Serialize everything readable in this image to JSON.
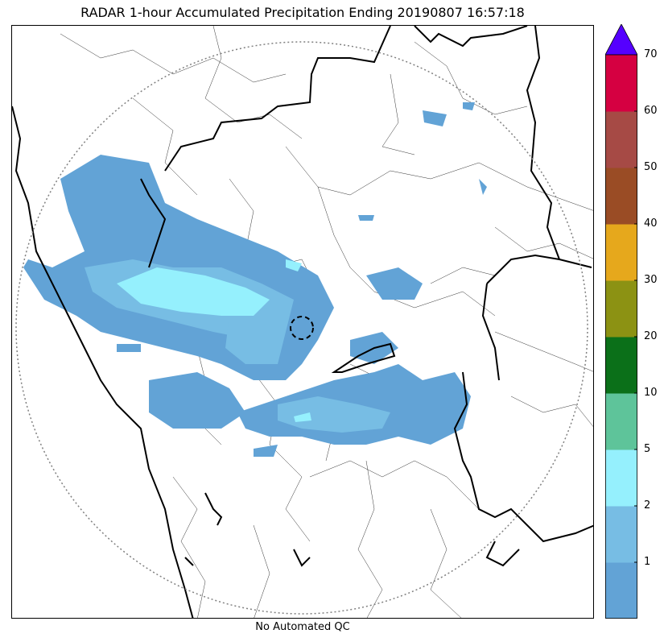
{
  "map": {
    "title": "RADAR 1-hour Accumulated Precipitation Ending 20190807 16:57:18",
    "footer": "No Automated QC"
  },
  "colorbar": {
    "ticks": [
      "1",
      "2",
      "5",
      "10",
      "20",
      "30",
      "40",
      "50",
      "60",
      "70"
    ],
    "bins": [
      {
        "color": "#62a3d6"
      },
      {
        "color": "#77bde4"
      },
      {
        "color": "#95f0fd"
      },
      {
        "color": "#5ec49a"
      },
      {
        "color": "#0b7019"
      },
      {
        "color": "#8c9213"
      },
      {
        "color": "#e6a81c"
      },
      {
        "color": "#9a4c25"
      },
      {
        "color": "#a64a45"
      },
      {
        "color": "#d50041"
      }
    ],
    "extend_color": "#5500ff"
  },
  "colors": {
    "precip_light": "#62a3d6",
    "precip_mid": "#77bde4",
    "precip_heavy": "#95f0fd",
    "range_ring": "#808080",
    "boundary": "#000000"
  }
}
